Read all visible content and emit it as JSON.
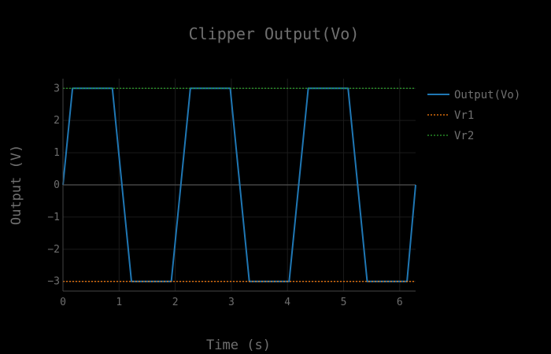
{
  "chart_data": {
    "type": "line",
    "title": "Clipper Output(Vo)",
    "xlabel": "Time (s)",
    "ylabel": "Output (V)",
    "xlim": [
      0,
      6.283
    ],
    "ylim": [
      -3.3,
      3.3
    ],
    "x_ticks": [
      0,
      1,
      2,
      3,
      4,
      5,
      6
    ],
    "y_ticks": [
      -3,
      -2,
      -1,
      0,
      1,
      2,
      3
    ],
    "x_tick_labels": [
      "0",
      "1",
      "2",
      "3",
      "4",
      "5",
      "6"
    ],
    "y_tick_labels": [
      "−3",
      "−2",
      "−1",
      "0",
      "1",
      "2",
      "3"
    ],
    "grid": true,
    "legend_position": "top-right",
    "series": [
      {
        "name": "Output(Vo)",
        "color": "#1f77b4",
        "dash": "solid",
        "x": [
          0,
          0.17,
          0.88,
          1.22,
          1.93,
          2.27,
          2.98,
          3.32,
          4.03,
          4.37,
          5.08,
          5.42,
          6.13,
          6.283
        ],
        "y": [
          0,
          3,
          3,
          -3,
          -3,
          3,
          3,
          -3,
          -3,
          3,
          3,
          -3,
          -3,
          0
        ]
      },
      {
        "name": "Vr1",
        "color": "#ff7f0e",
        "dash": "dotted",
        "x": [
          0,
          6.283
        ],
        "y": [
          -3,
          -3
        ]
      },
      {
        "name": "Vr2",
        "color": "#2ca02c",
        "dash": "dotted",
        "x": [
          0,
          6.283
        ],
        "y": [
          3,
          3
        ]
      }
    ]
  }
}
